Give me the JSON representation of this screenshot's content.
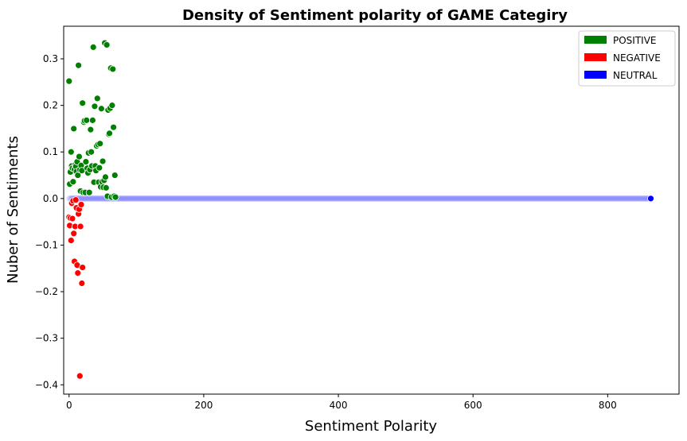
{
  "chart_data": {
    "type": "scatter",
    "title": "Density of Sentiment polarity of GAME Categiry",
    "xlabel": "Sentiment Polarity",
    "ylabel": "Nuber of Sentiments",
    "xlim": [
      -8,
      906
    ],
    "ylim": [
      -0.42,
      0.37
    ],
    "xticks": [
      0,
      200,
      400,
      600,
      800
    ],
    "yticks": [
      -0.4,
      -0.3,
      -0.2,
      -0.1,
      0.0,
      0.1,
      0.2,
      0.3
    ],
    "xtick_labels": [
      "0",
      "200",
      "400",
      "600",
      "800"
    ],
    "ytick_labels": [
      "−0.4",
      "−0.3",
      "−0.2",
      "−0.1",
      "0.0",
      "0.1",
      "0.2",
      "0.3"
    ],
    "grid": false,
    "legend_position": "top-right",
    "legend": [
      {
        "label": "POSITIVE",
        "color": "#008000"
      },
      {
        "label": "NEGATIVE",
        "color": "#ff0000"
      },
      {
        "label": "NEUTRAL",
        "color": "#0000ff"
      }
    ],
    "series": [
      {
        "name": "POSITIVE",
        "color": "#008000",
        "points": [
          [
            0,
            0.252
          ],
          [
            1,
            0.031
          ],
          [
            2,
            0.057
          ],
          [
            3,
            0.1
          ],
          [
            4,
            0.07
          ],
          [
            5,
            0.065
          ],
          [
            6,
            0.036
          ],
          [
            7,
            0.15
          ],
          [
            8,
            0.063
          ],
          [
            9,
            0.072
          ],
          [
            10,
            0.069
          ],
          [
            11,
            0.058
          ],
          [
            12,
            0.079
          ],
          [
            13,
            0.05
          ],
          [
            14,
            0.286
          ],
          [
            15,
            0.09
          ],
          [
            16,
            0.062
          ],
          [
            17,
            0.016
          ],
          [
            18,
            0.071
          ],
          [
            19,
            0.06
          ],
          [
            20,
            0.205
          ],
          [
            21,
            0.013
          ],
          [
            22,
            0.164
          ],
          [
            23,
            0.167
          ],
          [
            24,
            0.013
          ],
          [
            25,
            0.079
          ],
          [
            26,
            0.168
          ],
          [
            27,
            0.065
          ],
          [
            28,
            0.055
          ],
          [
            29,
            0.098
          ],
          [
            30,
            0.013
          ],
          [
            31,
            0.062
          ],
          [
            32,
            0.148
          ],
          [
            33,
            0.1
          ],
          [
            34,
            0.07
          ],
          [
            35,
            0.168
          ],
          [
            36,
            0.325
          ],
          [
            37,
            0.035
          ],
          [
            38,
            0.198
          ],
          [
            39,
            0.07
          ],
          [
            40,
            0.06
          ],
          [
            41,
            0.113
          ],
          [
            42,
            0.215
          ],
          [
            43,
            0.116
          ],
          [
            44,
            0.035
          ],
          [
            45,
            0.066
          ],
          [
            46,
            0.118
          ],
          [
            47,
            0.025
          ],
          [
            48,
            0.193
          ],
          [
            49,
            0.036
          ],
          [
            50,
            0.08
          ],
          [
            51,
            0.024
          ],
          [
            52,
            0.039
          ],
          [
            53,
            0.334
          ],
          [
            54,
            0.046
          ],
          [
            55,
            0.023
          ],
          [
            56,
            0.33
          ],
          [
            57,
            0.005
          ],
          [
            58,
            0.19
          ],
          [
            59,
            0.138
          ],
          [
            60,
            0.14
          ],
          [
            61,
            0.194
          ],
          [
            62,
            0.28
          ],
          [
            63,
            0.003
          ],
          [
            64,
            0.2
          ],
          [
            65,
            0.278
          ],
          [
            66,
            0.153
          ],
          [
            67,
            0.005
          ],
          [
            68,
            0.05
          ],
          [
            69,
            0.003
          ]
        ]
      },
      {
        "name": "NEGATIVE",
        "color": "#ff0000",
        "points": [
          [
            0,
            -0.04
          ],
          [
            1,
            -0.058
          ],
          [
            2,
            -0.042
          ],
          [
            3,
            -0.09
          ],
          [
            4,
            -0.01
          ],
          [
            5,
            -0.043
          ],
          [
            6,
            -0.005
          ],
          [
            7,
            -0.075
          ],
          [
            8,
            -0.135
          ],
          [
            9,
            -0.06
          ],
          [
            10,
            -0.003
          ],
          [
            11,
            -0.02
          ],
          [
            12,
            -0.143
          ],
          [
            13,
            -0.16
          ],
          [
            14,
            -0.033
          ],
          [
            15,
            -0.023
          ],
          [
            16,
            -0.381
          ],
          [
            17,
            -0.06
          ],
          [
            18,
            -0.013
          ],
          [
            19,
            -0.182
          ],
          [
            20,
            -0.148
          ]
        ]
      },
      {
        "name": "NEUTRAL",
        "color": "#0000ff",
        "range": [
          0,
          864
        ],
        "value": 0.0,
        "highlight_last": true
      }
    ]
  }
}
